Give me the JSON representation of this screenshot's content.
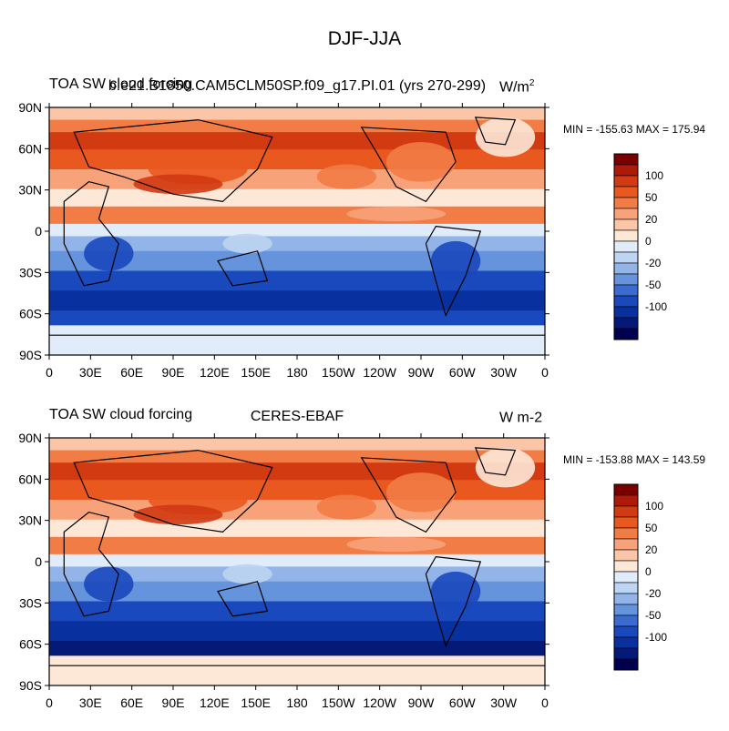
{
  "title": "DJF-JJA",
  "colorbar_levels": [
    "100",
    "50",
    "20",
    "0",
    "-20",
    "-50",
    "-100"
  ],
  "colorbar_colors": [
    "#7a0000",
    "#ae1a0a",
    "#d23a12",
    "#e9591f",
    "#f27c45",
    "#f8a27a",
    "#fbc6a8",
    "#fde8d7",
    "#e1ecfa",
    "#bdd4f2",
    "#92b4e8",
    "#6593dc",
    "#3b6bd0",
    "#1a48bd",
    "#08309e",
    "#041978",
    "#01004f"
  ],
  "x_ticks": [
    "0",
    "30E",
    "60E",
    "90E",
    "120E",
    "150E",
    "180",
    "150W",
    "120W",
    "90W",
    "60W",
    "30W",
    "0"
  ],
  "y_ticks": [
    "90N",
    "60N",
    "30N",
    "0",
    "30S",
    "60S",
    "90S"
  ],
  "panels": [
    {
      "left_label": "TOA SW cloud forcing",
      "center_label": "b.e21.B1850.CAM5CLM50SP.f09_g17.PI.01 (yrs 270-299)",
      "units_base": "W/m",
      "units_sup": "2",
      "minmax": "MIN = -155.63   MAX = 175.94"
    },
    {
      "left_label": "TOA SW cloud forcing",
      "center_label": "CERES-EBAF",
      "units_base": "W m-2",
      "units_sup": "",
      "minmax": "MIN = -153.88   MAX = 143.59"
    }
  ]
}
